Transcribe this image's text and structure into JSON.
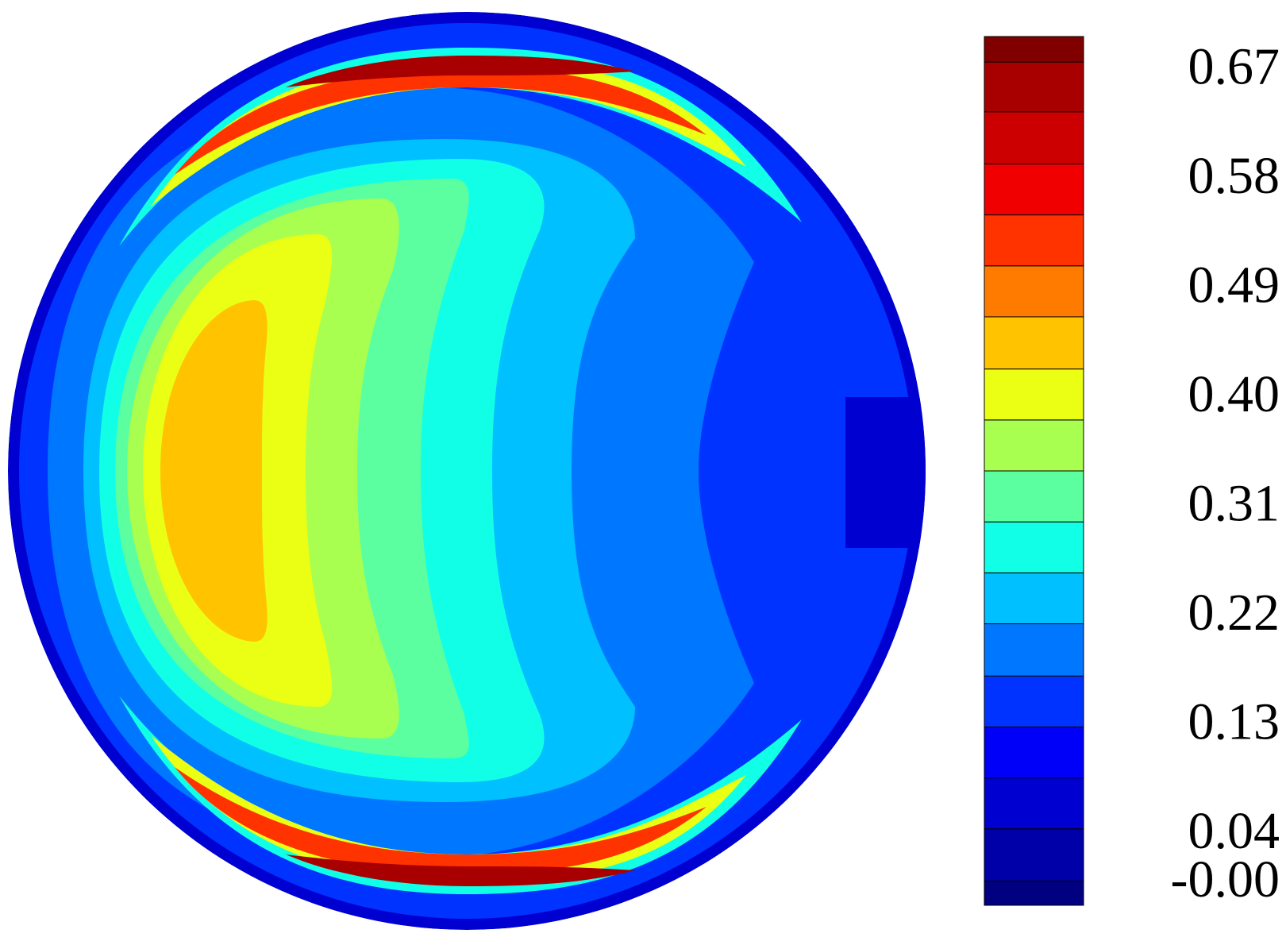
{
  "chart_data": {
    "type": "contour",
    "colorbar": {
      "lim": [
        -0.017,
        0.699
      ],
      "levels": [
        -0.017,
        0.003,
        0.046,
        0.088,
        0.13,
        0.172,
        0.215,
        0.257,
        0.299,
        0.341,
        0.383,
        0.425,
        0.468,
        0.51,
        0.552,
        0.594,
        0.637,
        0.678,
        0.699
      ],
      "colors": [
        "#000080",
        "#0000a8",
        "#0000d0",
        "#0000f8",
        "#0033ff",
        "#0077ff",
        "#00c0ff",
        "#11ffe6",
        "#5cff9f",
        "#a8ff50",
        "#eaff14",
        "#ffc300",
        "#ff7b00",
        "#ff3300",
        "#f00000",
        "#cc0000",
        "#a80000",
        "#800000"
      ],
      "ticks": [
        {
          "value": 0,
          "label": "-0.00"
        },
        {
          "value": 0.04,
          "label": "0.04"
        },
        0.13,
        0.22,
        0.31,
        {
          "value": 0.4,
          "label": "0.40"
        },
        0.49,
        0.58,
        0.67
      ]
    }
  }
}
